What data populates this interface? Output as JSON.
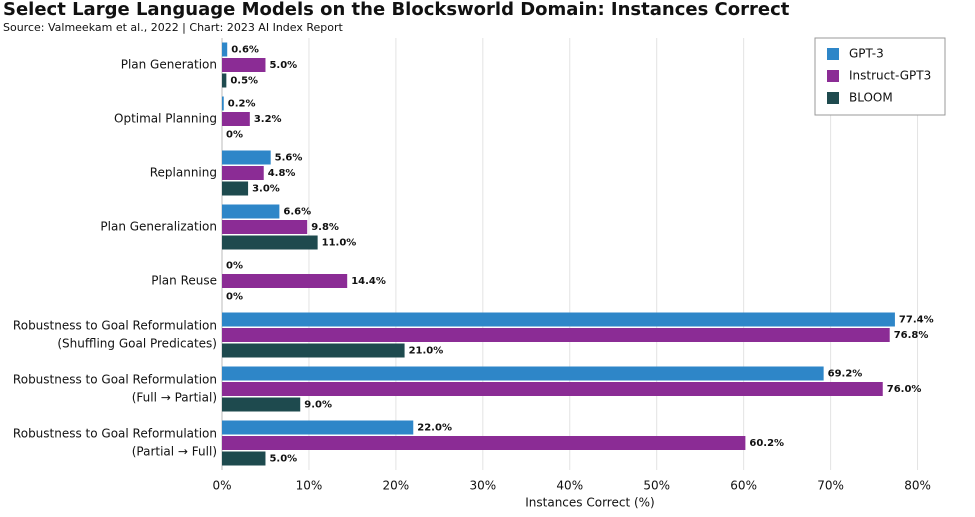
{
  "chart_data": {
    "type": "barh",
    "title": "Select Large Language Models on the Blocksworld Domain: Instances Correct",
    "subtitle": "Source: Valmeekam et al., 2022 | Chart: 2023 AI Index Report",
    "x_label": "Instances Correct (%)",
    "categories": [
      [
        "Plan Generation"
      ],
      [
        "Optimal Planning"
      ],
      [
        "Replanning"
      ],
      [
        "Plan Generalization"
      ],
      [
        "Plan Reuse"
      ],
      [
        "Robustness to Goal Reformulation",
        "(Shuffling Goal Predicates)"
      ],
      [
        "Robustness to Goal Reformulation",
        "(Full → Partial)"
      ],
      [
        "Robustness to Goal Reformulation",
        "(Partial → Full)"
      ]
    ],
    "series": [
      {
        "name": "GPT-3",
        "color": "#2e86c8",
        "values": [
          0.6,
          0.2,
          5.6,
          6.6,
          0,
          77.4,
          69.2,
          22.0
        ],
        "value_labels": [
          "0.6%",
          "0.2%",
          "5.6%",
          "6.6%",
          "0%",
          "77.4%",
          "69.2%",
          "22.0%"
        ]
      },
      {
        "name": "Instruct-GPT3",
        "color": "#8b2c95",
        "values": [
          5.0,
          3.2,
          4.8,
          9.8,
          14.4,
          76.8,
          76.0,
          60.2
        ],
        "value_labels": [
          "5.0%",
          "3.2%",
          "4.8%",
          "9.8%",
          "14.4%",
          "76.8%",
          "76.0%",
          "60.2%"
        ]
      },
      {
        "name": "BLOOM",
        "color": "#1e4a4e",
        "values": [
          0.5,
          0,
          3.0,
          11.0,
          0,
          21.0,
          9.0,
          5.0
        ],
        "value_labels": [
          "0.5%",
          "0%",
          "3.0%",
          "11.0%",
          "0%",
          "21.0%",
          "9.0%",
          "5.0%"
        ]
      }
    ],
    "xlim": [
      0,
      85
    ],
    "xticks": [
      {
        "value": 0,
        "label": "0%"
      },
      {
        "value": 10,
        "label": "10%"
      },
      {
        "value": 20,
        "label": "20%"
      },
      {
        "value": 30,
        "label": "30%"
      },
      {
        "value": 40,
        "label": "40%"
      },
      {
        "value": 50,
        "label": "50%"
      },
      {
        "value": 60,
        "label": "60%"
      },
      {
        "value": 70,
        "label": "70%"
      },
      {
        "value": 80,
        "label": "80%"
      }
    ],
    "grid": true,
    "legend": "upper right"
  }
}
